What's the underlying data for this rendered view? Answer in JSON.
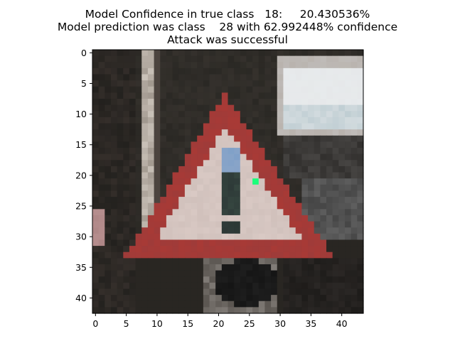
{
  "figure": {
    "title_lines": [
      "Model Confidence in true class   18:     20.430536%",
      "Model prediction was class    28 with 62.992448% confidence",
      "Attack was successful"
    ]
  },
  "chart_data": {
    "type": "heatmap",
    "description_kind": "image",
    "image_size": [
      44,
      43
    ],
    "xlim": [
      -0.5,
      43.5
    ],
    "ylim": [
      42.5,
      -0.5
    ],
    "x_ticks": [
      0,
      5,
      10,
      15,
      20,
      25,
      30,
      35,
      40
    ],
    "y_ticks": [
      0,
      5,
      10,
      15,
      20,
      25,
      30,
      35,
      40
    ],
    "true_class": 18,
    "true_class_confidence_percent": 20.430536,
    "predicted_class": 28,
    "predicted_class_confidence_percent": 62.992448,
    "attack_successful": true,
    "perturbed_pixel": {
      "x": 26,
      "y": 21,
      "color": "#1aff7a"
    },
    "colors": {
      "background_dark": "#2a2824",
      "sign_border_red": "#a83a36",
      "sign_interior": "#d9c9c4",
      "symbol_dark": "#2e3a38",
      "symbol_blue": "#7fa0c8",
      "post_light": "#c9c1b8",
      "panel_light": "#e6e8ea",
      "panel_frame": "#b9b3ae",
      "circle_black": "#151515",
      "left_edge_pink": "#b89090"
    }
  }
}
